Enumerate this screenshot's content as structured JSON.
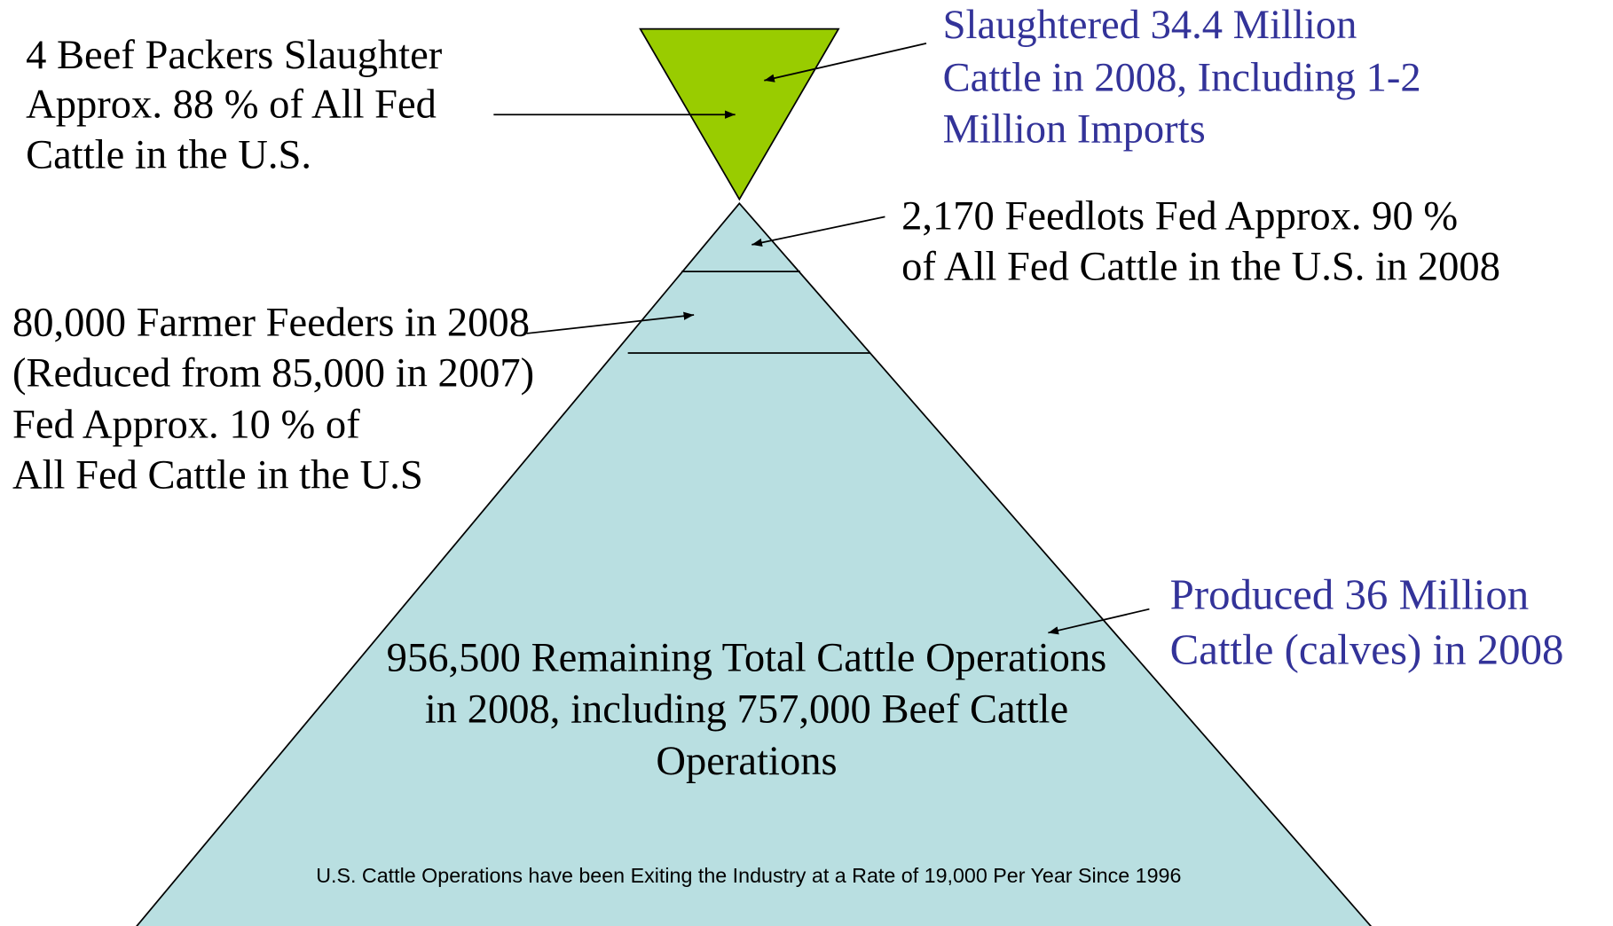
{
  "packers": {
    "lines": [
      "4 Beef Packers Slaughter",
      "Approx. 88 % of All Fed",
      "Cattle in the U.S."
    ]
  },
  "slaughtered": {
    "lines": [
      "Slaughtered 34.4 Million",
      "Cattle in 2008, Including 1-2",
      "Million Imports"
    ]
  },
  "feedlots": {
    "lines": [
      "2,170 Feedlots Fed Approx. 90 %",
      "of All Fed Cattle in the U.S. in 2008"
    ]
  },
  "farmer_feeders": {
    "lines": [
      "80,000 Farmer Feeders in 2008",
      "(Reduced from 85,000 in 2007)",
      "Fed Approx. 10 % of",
      "All Fed Cattle in the U.S"
    ]
  },
  "produced": {
    "lines": [
      "Produced 36 Million",
      "Cattle (calves) in 2008"
    ]
  },
  "operations": {
    "lines": [
      "956,500 Remaining Total Cattle Operations",
      "in 2008, including 757,000 Beef Cattle",
      "Operations"
    ]
  },
  "footnote": "U.S. Cattle Operations have been Exiting the Industry at a Rate of 19,000 Per Year Since 1996"
}
